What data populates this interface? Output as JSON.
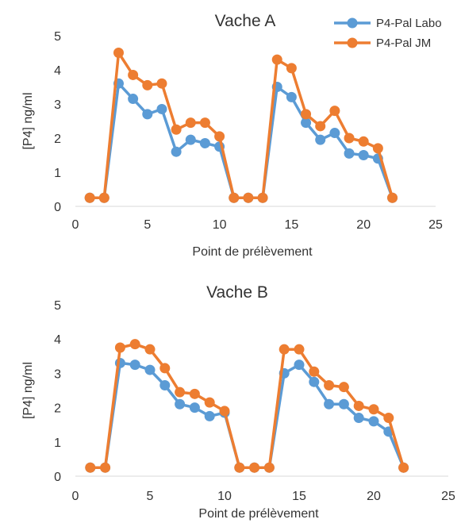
{
  "legend": {
    "items": [
      {
        "label": "P4-Pal Labo",
        "color": "#5b9bd5"
      },
      {
        "label": "P4-Pal JM",
        "color": "#ed7d31"
      }
    ]
  },
  "chart_data": [
    {
      "type": "line",
      "title": "Vache A",
      "xlabel": "Point de prélèvement",
      "ylabel": "[P4] ng/ml",
      "xlim": [
        0,
        25
      ],
      "ylim": [
        0,
        5
      ],
      "xticks": [
        0,
        5,
        10,
        15,
        20,
        25
      ],
      "yticks": [
        0,
        1,
        2,
        3,
        4,
        5
      ],
      "grid": false,
      "legend_position": "top-right",
      "x": [
        1,
        2,
        3,
        4,
        5,
        6,
        7,
        8,
        9,
        10,
        11,
        12,
        13,
        14,
        15,
        16,
        17,
        18,
        19,
        20,
        21,
        22
      ],
      "series": [
        {
          "name": "P4-Pal Labo",
          "color": "#5b9bd5",
          "values": [
            0.25,
            0.25,
            3.6,
            3.15,
            2.7,
            2.85,
            1.6,
            1.95,
            1.85,
            1.75,
            0.25,
            0.25,
            0.25,
            3.5,
            3.2,
            2.45,
            1.95,
            2.15,
            1.55,
            1.5,
            1.4,
            0.25
          ]
        },
        {
          "name": "P4-Pal JM",
          "color": "#ed7d31",
          "values": [
            0.25,
            0.25,
            4.5,
            3.85,
            3.55,
            3.6,
            2.25,
            2.45,
            2.45,
            2.05,
            0.25,
            0.25,
            0.25,
            4.3,
            4.05,
            2.7,
            2.35,
            2.8,
            2.0,
            1.9,
            1.7,
            0.25
          ]
        }
      ]
    },
    {
      "type": "line",
      "title": "Vache B",
      "xlabel": "Point de prélèvement",
      "ylabel": "[P4] ng/ml",
      "xlim": [
        0,
        25
      ],
      "ylim": [
        0,
        5
      ],
      "xticks": [
        0,
        5,
        10,
        15,
        20,
        25
      ],
      "yticks": [
        0,
        1,
        2,
        3,
        4,
        5
      ],
      "grid": false,
      "x": [
        1,
        2,
        3,
        4,
        5,
        6,
        7,
        8,
        9,
        10,
        11,
        12,
        13,
        14,
        15,
        16,
        17,
        18,
        19,
        20,
        21,
        22
      ],
      "series": [
        {
          "name": "P4-Pal Labo",
          "color": "#5b9bd5",
          "values": [
            0.25,
            0.25,
            3.3,
            3.25,
            3.1,
            2.65,
            2.1,
            2.0,
            1.75,
            1.85,
            0.25,
            0.25,
            0.25,
            3.0,
            3.25,
            2.75,
            2.1,
            2.1,
            1.7,
            1.6,
            1.3,
            0.25
          ]
        },
        {
          "name": "P4-Pal JM",
          "color": "#ed7d31",
          "values": [
            0.25,
            0.25,
            3.75,
            3.85,
            3.7,
            3.15,
            2.45,
            2.4,
            2.15,
            1.9,
            0.25,
            0.25,
            0.25,
            3.7,
            3.7,
            3.05,
            2.65,
            2.6,
            2.05,
            1.95,
            1.7,
            0.25
          ]
        }
      ]
    }
  ]
}
